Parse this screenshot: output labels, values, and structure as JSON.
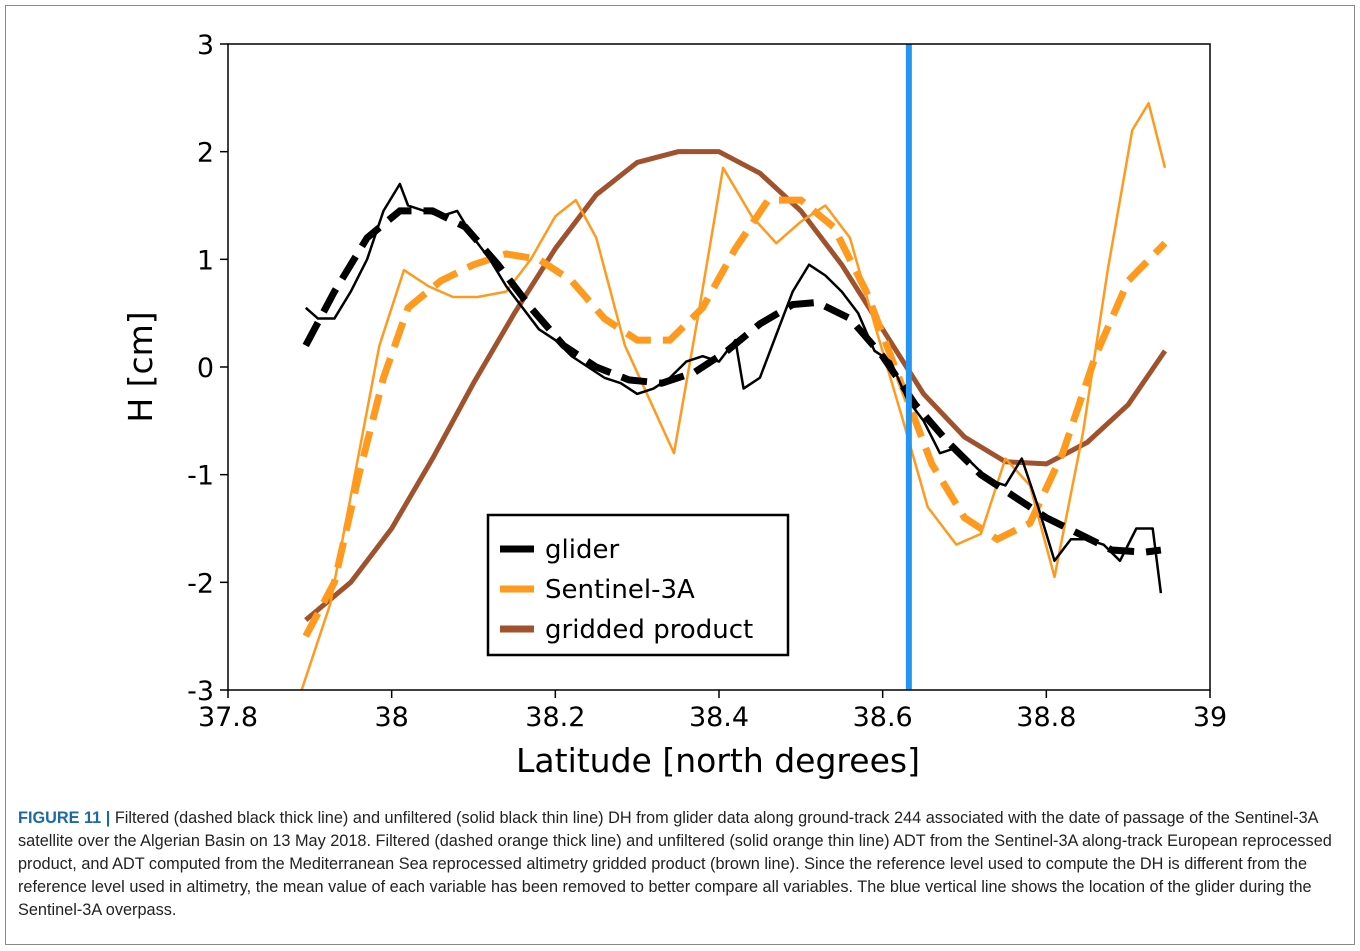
{
  "chart_data": {
    "type": "line",
    "xlabel": "Latitude [north degrees]",
    "ylabel": "H [cm]",
    "xlim": [
      37.8,
      39.0
    ],
    "xticks": [
      37.8,
      38.0,
      38.2,
      38.4,
      38.6,
      38.8,
      39.0
    ],
    "ylim": [
      -3,
      3
    ],
    "yticks": [
      -3,
      -2,
      -1,
      0,
      1,
      2,
      3
    ],
    "vline": {
      "x": 38.632,
      "color": "#2196f3"
    },
    "series": [
      {
        "name": "glider",
        "color": "#000000",
        "x": [
          37.895,
          37.91,
          37.93,
          37.95,
          37.97,
          37.99,
          38.01,
          38.02,
          38.04,
          38.06,
          38.08,
          38.1,
          38.12,
          38.14,
          38.16,
          38.18,
          38.2,
          38.22,
          38.24,
          38.26,
          38.28,
          38.3,
          38.32,
          38.34,
          38.36,
          38.38,
          38.4,
          38.42,
          38.43,
          38.45,
          38.47,
          38.49,
          38.51,
          38.53,
          38.55,
          38.57,
          38.59,
          38.61,
          38.63,
          38.65,
          38.67,
          38.69,
          38.71,
          38.73,
          38.75,
          38.77,
          38.79,
          38.81,
          38.83,
          38.85,
          38.87,
          38.89,
          38.91,
          38.93,
          38.94
        ],
        "values": [
          0.55,
          0.45,
          0.45,
          0.7,
          1.0,
          1.45,
          1.7,
          1.5,
          1.45,
          1.4,
          1.45,
          1.2,
          1.0,
          0.75,
          0.55,
          0.35,
          0.25,
          0.1,
          0.0,
          -0.1,
          -0.15,
          -0.25,
          -0.2,
          -0.1,
          0.05,
          0.1,
          0.05,
          0.25,
          -0.2,
          -0.1,
          0.3,
          0.7,
          0.95,
          0.85,
          0.7,
          0.5,
          0.15,
          0.05,
          -0.3,
          -0.5,
          -0.8,
          -0.75,
          -0.9,
          -1.05,
          -1.1,
          -0.85,
          -1.3,
          -1.8,
          -1.6,
          -1.6,
          -1.65,
          -1.8,
          -1.5,
          -1.5,
          -2.1
        ],
        "filtered_x": [
          37.895,
          37.93,
          37.97,
          38.01,
          38.05,
          38.09,
          38.13,
          38.17,
          38.21,
          38.25,
          38.29,
          38.33,
          38.37,
          38.41,
          38.45,
          38.49,
          38.52,
          38.56,
          38.6,
          38.64,
          38.68,
          38.72,
          38.76,
          38.8,
          38.84,
          38.88,
          38.92,
          38.94
        ],
        "filtered_values": [
          0.2,
          0.7,
          1.2,
          1.45,
          1.45,
          1.3,
          0.95,
          0.55,
          0.2,
          0.0,
          -0.12,
          -0.15,
          -0.05,
          0.15,
          0.4,
          0.58,
          0.6,
          0.45,
          0.1,
          -0.35,
          -0.7,
          -1.0,
          -1.2,
          -1.4,
          -1.55,
          -1.7,
          -1.72,
          -1.7
        ]
      },
      {
        "name": "Sentinel-3A",
        "color": "#ff9a1f",
        "x": [
          37.89,
          37.925,
          37.955,
          37.985,
          38.015,
          38.045,
          38.075,
          38.105,
          38.14,
          38.17,
          38.2,
          38.225,
          38.25,
          38.285,
          38.315,
          38.345,
          38.375,
          38.405,
          38.44,
          38.47,
          38.5,
          38.53,
          38.56,
          38.59,
          38.625,
          38.655,
          38.69,
          38.72,
          38.75,
          38.78,
          38.81,
          38.845,
          38.875,
          38.905,
          38.925,
          38.945
        ],
        "values": [
          -3.0,
          -2.2,
          -1.0,
          0.2,
          0.9,
          0.75,
          0.65,
          0.65,
          0.7,
          1.0,
          1.4,
          1.55,
          1.2,
          0.2,
          -0.3,
          -0.8,
          0.5,
          1.85,
          1.4,
          1.15,
          1.35,
          1.5,
          1.2,
          0.4,
          -0.5,
          -1.3,
          -1.65,
          -1.55,
          -0.85,
          -1.1,
          -1.95,
          -0.6,
          0.9,
          2.2,
          2.45,
          1.85
        ],
        "filtered_x": [
          37.895,
          37.93,
          37.96,
          37.99,
          38.02,
          38.06,
          38.1,
          38.14,
          38.18,
          38.22,
          38.26,
          38.3,
          38.34,
          38.38,
          38.42,
          38.46,
          38.5,
          38.54,
          38.58,
          38.62,
          38.66,
          38.7,
          38.74,
          38.78,
          38.82,
          38.86,
          38.9,
          38.945
        ],
        "filtered_values": [
          -2.5,
          -2.0,
          -1.0,
          -0.1,
          0.55,
          0.8,
          0.95,
          1.05,
          1.0,
          0.8,
          0.45,
          0.25,
          0.25,
          0.55,
          1.1,
          1.55,
          1.55,
          1.3,
          0.7,
          -0.1,
          -0.9,
          -1.4,
          -1.6,
          -1.45,
          -0.8,
          0.1,
          0.8,
          1.15
        ]
      },
      {
        "name": "gridded product",
        "color": "#a0522d",
        "x": [
          37.895,
          37.95,
          38.0,
          38.05,
          38.1,
          38.15,
          38.2,
          38.25,
          38.3,
          38.35,
          38.4,
          38.45,
          38.5,
          38.55,
          38.6,
          38.65,
          38.7,
          38.75,
          38.8,
          38.85,
          38.9,
          38.945
        ],
        "values": [
          -2.35,
          -2.0,
          -1.5,
          -0.85,
          -0.15,
          0.5,
          1.1,
          1.6,
          1.9,
          2.0,
          2.0,
          1.8,
          1.45,
          0.95,
          0.35,
          -0.25,
          -0.65,
          -0.88,
          -0.9,
          -0.7,
          -0.35,
          0.15
        ]
      }
    ]
  },
  "caption": {
    "label": "FIGURE 11 |",
    "text": "Filtered (dashed black thick line) and unfiltered (solid black thin line) DH from glider data along ground-track 244 associated with the date of passage of the Sentinel-3A satellite over the Algerian Basin on 13 May 2018. Filtered (dashed orange thick line) and unfiltered (solid orange thin line) ADT from the Sentinel-3A along-track European reprocessed product, and ADT computed from the Mediterranean Sea reprocessed altimetry gridded product (brown line). Since the reference level used to compute the DH is different from the reference level used in altimetry, the mean value of each variable has been removed to better compare all variables. The blue vertical line shows the location of the glider during the Sentinel-3A overpass."
  }
}
